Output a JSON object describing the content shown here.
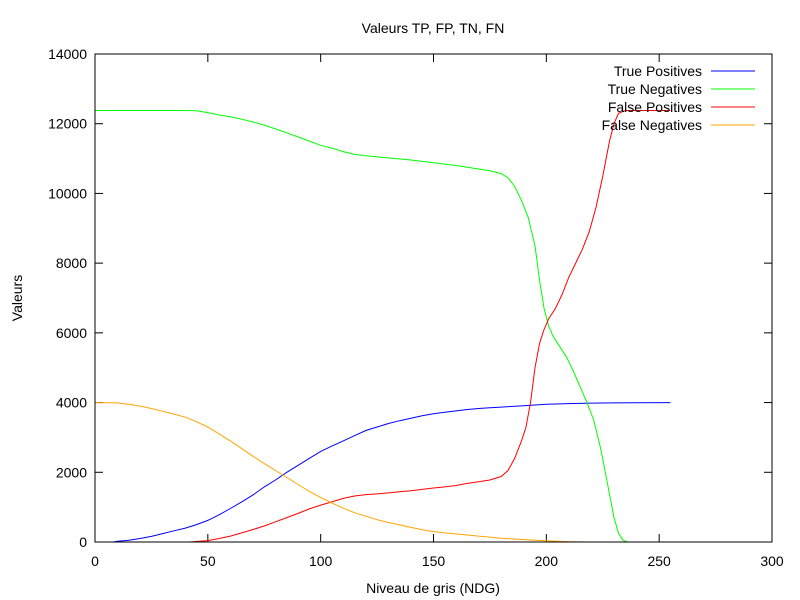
{
  "chart_data": {
    "type": "line",
    "title": "Valeurs TP, FP, TN, FN",
    "xlabel": "Niveau de gris (NDG)",
    "ylabel": "Valeurs",
    "xlim": [
      0,
      300
    ],
    "ylim": [
      0,
      14000
    ],
    "xticks": [
      0,
      50,
      100,
      150,
      200,
      250,
      300
    ],
    "yticks": [
      0,
      2000,
      4000,
      6000,
      8000,
      10000,
      12000,
      14000
    ],
    "grid": false,
    "legend_position": "top-right",
    "series": [
      {
        "name": "True Positives",
        "color": "#0000ff",
        "points": [
          [
            8,
            0
          ],
          [
            10,
            20
          ],
          [
            15,
            50
          ],
          [
            20,
            100
          ],
          [
            25,
            160
          ],
          [
            30,
            240
          ],
          [
            35,
            320
          ],
          [
            40,
            400
          ],
          [
            45,
            500
          ],
          [
            50,
            620
          ],
          [
            55,
            780
          ],
          [
            60,
            960
          ],
          [
            65,
            1150
          ],
          [
            70,
            1350
          ],
          [
            75,
            1580
          ],
          [
            80,
            1780
          ],
          [
            85,
            2000
          ],
          [
            90,
            2200
          ],
          [
            95,
            2400
          ],
          [
            100,
            2600
          ],
          [
            105,
            2750
          ],
          [
            110,
            2900
          ],
          [
            115,
            3050
          ],
          [
            120,
            3200
          ],
          [
            125,
            3300
          ],
          [
            130,
            3400
          ],
          [
            135,
            3480
          ],
          [
            140,
            3550
          ],
          [
            145,
            3620
          ],
          [
            150,
            3680
          ],
          [
            155,
            3720
          ],
          [
            160,
            3760
          ],
          [
            165,
            3800
          ],
          [
            170,
            3830
          ],
          [
            175,
            3850
          ],
          [
            180,
            3870
          ],
          [
            185,
            3890
          ],
          [
            190,
            3910
          ],
          [
            195,
            3930
          ],
          [
            200,
            3950
          ],
          [
            210,
            3970
          ],
          [
            220,
            3985
          ],
          [
            230,
            3990
          ],
          [
            240,
            3995
          ],
          [
            255,
            4000
          ]
        ]
      },
      {
        "name": "True Negatives",
        "color": "#00ff00",
        "points": [
          [
            0,
            12380
          ],
          [
            10,
            12380
          ],
          [
            20,
            12380
          ],
          [
            30,
            12380
          ],
          [
            40,
            12380
          ],
          [
            45,
            12370
          ],
          [
            50,
            12320
          ],
          [
            55,
            12250
          ],
          [
            60,
            12200
          ],
          [
            65,
            12130
          ],
          [
            70,
            12050
          ],
          [
            75,
            11960
          ],
          [
            80,
            11850
          ],
          [
            85,
            11740
          ],
          [
            90,
            11620
          ],
          [
            95,
            11500
          ],
          [
            100,
            11380
          ],
          [
            105,
            11300
          ],
          [
            110,
            11200
          ],
          [
            115,
            11120
          ],
          [
            120,
            11080
          ],
          [
            130,
            11020
          ],
          [
            140,
            10960
          ],
          [
            150,
            10880
          ],
          [
            160,
            10800
          ],
          [
            170,
            10700
          ],
          [
            175,
            10650
          ],
          [
            180,
            10570
          ],
          [
            183,
            10450
          ],
          [
            186,
            10200
          ],
          [
            189,
            9800
          ],
          [
            192,
            9300
          ],
          [
            195,
            8500
          ],
          [
            197,
            7500
          ],
          [
            199,
            6700
          ],
          [
            201,
            6200
          ],
          [
            203,
            5900
          ],
          [
            206,
            5600
          ],
          [
            209,
            5300
          ],
          [
            212,
            4900
          ],
          [
            215,
            4450
          ],
          [
            218,
            4000
          ],
          [
            221,
            3500
          ],
          [
            224,
            2700
          ],
          [
            227,
            1700
          ],
          [
            230,
            700
          ],
          [
            232,
            250
          ],
          [
            234,
            50
          ],
          [
            236,
            0
          ]
        ]
      },
      {
        "name": "False Positives",
        "color": "#ff0000",
        "points": [
          [
            42,
            0
          ],
          [
            50,
            40
          ],
          [
            55,
            100
          ],
          [
            60,
            170
          ],
          [
            65,
            260
          ],
          [
            70,
            360
          ],
          [
            75,
            460
          ],
          [
            80,
            580
          ],
          [
            85,
            700
          ],
          [
            90,
            820
          ],
          [
            95,
            950
          ],
          [
            100,
            1060
          ],
          [
            105,
            1150
          ],
          [
            110,
            1250
          ],
          [
            115,
            1320
          ],
          [
            120,
            1360
          ],
          [
            125,
            1380
          ],
          [
            130,
            1410
          ],
          [
            135,
            1440
          ],
          [
            140,
            1470
          ],
          [
            145,
            1510
          ],
          [
            150,
            1550
          ],
          [
            155,
            1580
          ],
          [
            160,
            1620
          ],
          [
            165,
            1680
          ],
          [
            170,
            1730
          ],
          [
            175,
            1780
          ],
          [
            180,
            1880
          ],
          [
            183,
            2050
          ],
          [
            186,
            2400
          ],
          [
            189,
            2900
          ],
          [
            191,
            3300
          ],
          [
            193,
            4000
          ],
          [
            195,
            5000
          ],
          [
            197,
            5700
          ],
          [
            199,
            6100
          ],
          [
            201,
            6400
          ],
          [
            204,
            6700
          ],
          [
            207,
            7100
          ],
          [
            210,
            7600
          ],
          [
            213,
            8000
          ],
          [
            216,
            8400
          ],
          [
            219,
            8900
          ],
          [
            222,
            9600
          ],
          [
            225,
            10500
          ],
          [
            228,
            11500
          ],
          [
            230,
            12000
          ],
          [
            232,
            12300
          ],
          [
            235,
            12380
          ],
          [
            240,
            12380
          ],
          [
            255,
            12380
          ]
        ]
      },
      {
        "name": "False Negatives",
        "color": "#ffa500",
        "points": [
          [
            0,
            4000
          ],
          [
            10,
            3990
          ],
          [
            15,
            3950
          ],
          [
            20,
            3900
          ],
          [
            25,
            3830
          ],
          [
            30,
            3750
          ],
          [
            35,
            3670
          ],
          [
            40,
            3580
          ],
          [
            45,
            3450
          ],
          [
            50,
            3300
          ],
          [
            55,
            3100
          ],
          [
            60,
            2900
          ],
          [
            65,
            2680
          ],
          [
            70,
            2460
          ],
          [
            75,
            2250
          ],
          [
            80,
            2050
          ],
          [
            85,
            1850
          ],
          [
            90,
            1650
          ],
          [
            95,
            1450
          ],
          [
            100,
            1280
          ],
          [
            105,
            1120
          ],
          [
            110,
            970
          ],
          [
            115,
            840
          ],
          [
            120,
            740
          ],
          [
            125,
            640
          ],
          [
            130,
            560
          ],
          [
            135,
            490
          ],
          [
            140,
            420
          ],
          [
            145,
            350
          ],
          [
            150,
            300
          ],
          [
            155,
            260
          ],
          [
            160,
            230
          ],
          [
            165,
            200
          ],
          [
            170,
            170
          ],
          [
            175,
            140
          ],
          [
            180,
            110
          ],
          [
            185,
            90
          ],
          [
            190,
            70
          ],
          [
            195,
            50
          ],
          [
            200,
            35
          ],
          [
            205,
            20
          ],
          [
            210,
            10
          ],
          [
            215,
            3
          ],
          [
            218,
            0
          ]
        ]
      }
    ]
  }
}
